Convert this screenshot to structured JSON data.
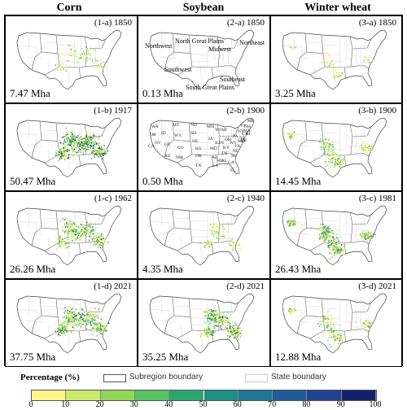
{
  "columns": [
    "Corn",
    "Soybean",
    "Winter wheat"
  ],
  "panels": [
    {
      "label": "(1-a) 1850",
      "area": "7.47 Mha",
      "crop": "corn",
      "intensity": 0.15
    },
    {
      "label": "(2-a) 1850",
      "area": "0.13 Mha",
      "crop": "soy",
      "intensity": 0.0
    },
    {
      "label": "(3-a) 1850",
      "area": "3.25 Mha",
      "crop": "wheat",
      "intensity": 0.12
    },
    {
      "label": "(1-b) 1917",
      "area": "50.47 Mha",
      "crop": "corn",
      "intensity": 0.85
    },
    {
      "label": "(2-b) 1900",
      "area": "0.50 Mha",
      "crop": "soy",
      "intensity": 0.0
    },
    {
      "label": "(3-b) 1900",
      "area": "14.45 Mha",
      "crop": "wheat",
      "intensity": 0.35
    },
    {
      "label": "(1-c) 1962",
      "area": "26.26 Mha",
      "crop": "corn",
      "intensity": 0.55
    },
    {
      "label": "(2-c) 1940",
      "area": "4.35 Mha",
      "crop": "soy",
      "intensity": 0.15
    },
    {
      "label": "(3-c) 1981",
      "area": "26.43 Mha",
      "crop": "wheat",
      "intensity": 0.7
    },
    {
      "label": "(1-d) 2021",
      "area": "37.75 Mha",
      "crop": "corn",
      "intensity": 0.7
    },
    {
      "label": "(2-d) 2021",
      "area": "35.25 Mha",
      "crop": "soy",
      "intensity": 0.65
    },
    {
      "label": "(3-d) 2021",
      "area": "12.88 Mha",
      "crop": "wheat",
      "intensity": 0.3
    }
  ],
  "regions": [
    "Northwest",
    "North Great Plains",
    "Midwest",
    "Northeast",
    "Southwest",
    "South Great Plains",
    "Southeast"
  ],
  "states": [
    "WA",
    "OR",
    "ID",
    "MT",
    "WY",
    "ND",
    "SD",
    "NE",
    "KS",
    "OK",
    "TX",
    "MN",
    "IA",
    "MO",
    "AR",
    "LA",
    "WI",
    "IL",
    "MI",
    "IN",
    "OH",
    "KY",
    "TN",
    "MS",
    "AL",
    "GA",
    "FL",
    "SC",
    "NC",
    "VA",
    "WV",
    "PA",
    "NY",
    "VT",
    "NH",
    "ME",
    "MA",
    "CT",
    "RI",
    "NJ",
    "DE",
    "MD",
    "CA",
    "NV",
    "UT",
    "CO",
    "AZ",
    "NM"
  ],
  "legend": {
    "title": "Percentage (%)",
    "subregion_label": "Subregion boundary",
    "state_label": "State boundary",
    "ticks": [
      "0",
      "10",
      "20",
      "30",
      "40",
      "50",
      "60",
      "70",
      "80",
      "90",
      "100"
    ],
    "colors": [
      "#fff48a",
      "#c9ea6a",
      "#8fd65a",
      "#57c261",
      "#2ca66f",
      "#1d8f84",
      "#1f7592",
      "#1f5c95",
      "#1e4290",
      "#141f6c"
    ]
  }
}
